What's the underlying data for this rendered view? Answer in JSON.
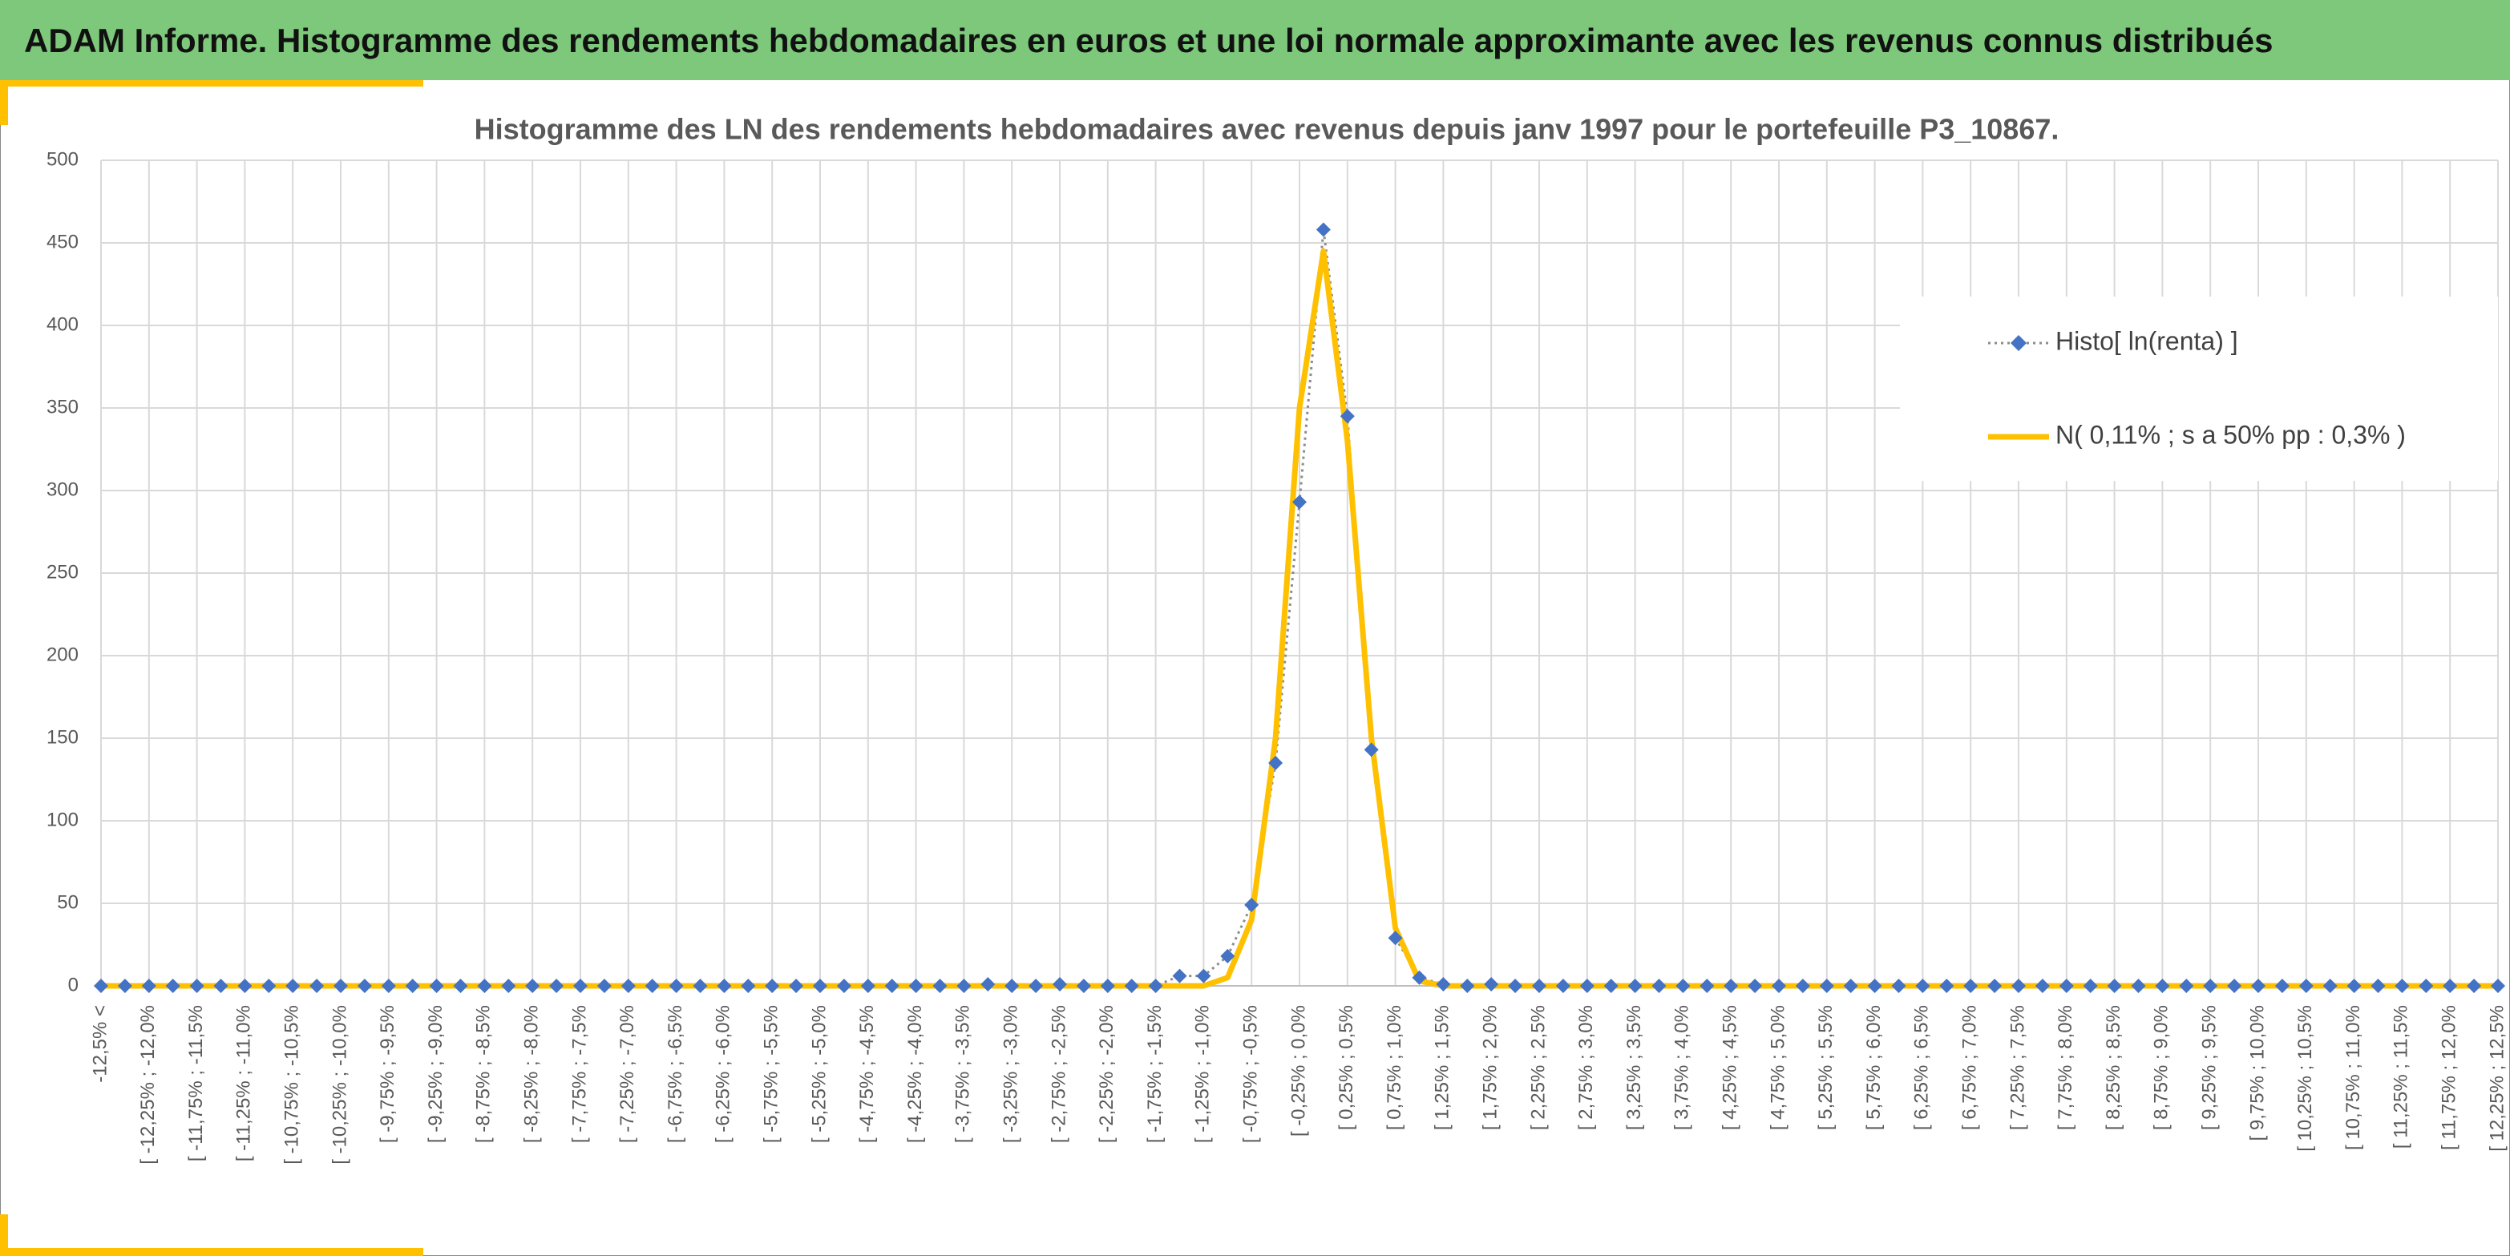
{
  "header": {
    "title": "ADAM Informe. Histogramme des rendements hebdomadaires en euros et une loi normale approximante avec les revenus connus distribués"
  },
  "chart_data": {
    "type": "line",
    "title": "Histogramme des LN des rendements hebdomadaires avec revenus depuis janv 1997 pour le portefeuille P3_10867.",
    "categories": [
      "-12,5% <",
      null,
      "[ -12,25% ; -12,0%",
      null,
      "[ -11,75% ; -11,5%",
      null,
      "[ -11,25% ; -11,0%",
      null,
      "[ -10,75% ; -10,5%",
      null,
      "[ -10,25% ; -10,0%",
      null,
      "[ -9,75% ; -9,5%",
      null,
      "[ -9,25% ; -9,0%",
      null,
      "[ -8,75% ; -8,5%",
      null,
      "[ -8,25% ; -8,0%",
      null,
      "[ -7,75% ; -7,5%",
      null,
      "[ -7,25% ; -7,0%",
      null,
      "[ -6,75% ; -6,5%",
      null,
      "[ -6,25% ; -6,0%",
      null,
      "[ -5,75% ; -5,5%",
      null,
      "[ -5,25% ; -5,0%",
      null,
      "[ -4,75% ; -4,5%",
      null,
      "[ -4,25% ; -4,0%",
      null,
      "[ -3,75% ; -3,5%",
      null,
      "[ -3,25% ; -3,0%",
      null,
      "[ -2,75% ; -2,5%",
      null,
      "[ -2,25% ; -2,0%",
      null,
      "[ -1,75% ; -1,5%",
      null,
      "[ -1,25% ; -1,0%",
      null,
      "[ -0,75% ; -0,5%",
      null,
      "[ -0,25% ; 0,0%",
      null,
      "[ 0,25% ; 0,5%",
      null,
      "[ 0,75% ; 1,0%",
      null,
      "[ 1,25% ; 1,5%",
      null,
      "[ 1,75% ; 2,0%",
      null,
      "[ 2,25% ; 2,5%",
      null,
      "[ 2,75% ; 3,0%",
      null,
      "[ 3,25% ; 3,5%",
      null,
      "[ 3,75% ; 4,0%",
      null,
      "[ 4,25% ; 4,5%",
      null,
      "[ 4,75% ; 5,0%",
      null,
      "[ 5,25% ; 5,5%",
      null,
      "[ 5,75% ; 6,0%",
      null,
      "[ 6,25% ; 6,5%",
      null,
      "[ 6,75% ; 7,0%",
      null,
      "[ 7,25% ; 7,5%",
      null,
      "[ 7,75% ; 8,0%",
      null,
      "[ 8,25% ; 8,5%",
      null,
      "[ 8,75% ; 9,0%",
      null,
      "[ 9,25% ; 9,5%",
      null,
      "[ 9,75% ; 10,0%",
      null,
      "[ 10,25% ; 10,5%",
      null,
      "[ 10,75% ; 11,0%",
      null,
      "[ 11,25% ; 11,5%",
      null,
      "[ 11,75% ; 12,0%",
      null,
      "[ 12,25% ; 12,5%"
    ],
    "series": [
      {
        "name": "Histo[ ln(renta) ]",
        "color": "#4472c4",
        "values": [
          0,
          0,
          0,
          0,
          0,
          0,
          0,
          0,
          0,
          0,
          0,
          0,
          0,
          0,
          0,
          0,
          0,
          0,
          0,
          0,
          0,
          0,
          0,
          0,
          0,
          0,
          0,
          0,
          0,
          0,
          0,
          0,
          0,
          0,
          0,
          0,
          0,
          1,
          0,
          0,
          1,
          0,
          0,
          0,
          0,
          6,
          6,
          18,
          49,
          135,
          293,
          458,
          345,
          143,
          29,
          5,
          1,
          0,
          1,
          0,
          0,
          0,
          0,
          0,
          0,
          0,
          0,
          0,
          0,
          0,
          0,
          0,
          0,
          0,
          0,
          0,
          0,
          0,
          0,
          0,
          0,
          0,
          0,
          0,
          0,
          0,
          0,
          0,
          0,
          0,
          0,
          0,
          0,
          0,
          0,
          0,
          0,
          0,
          0,
          0,
          0
        ]
      },
      {
        "name": "N( 0,11% ; s a 50% pp : 0,3% )",
        "color": "#ffc000",
        "values": [
          0,
          0,
          0,
          0,
          0,
          0,
          0,
          0,
          0,
          0,
          0,
          0,
          0,
          0,
          0,
          0,
          0,
          0,
          0,
          0,
          0,
          0,
          0,
          0,
          0,
          0,
          0,
          0,
          0,
          0,
          0,
          0,
          0,
          0,
          0,
          0,
          0,
          0,
          0,
          0,
          0,
          0,
          0,
          0,
          0,
          0,
          0,
          5,
          40,
          150,
          350,
          445,
          330,
          150,
          35,
          3,
          0,
          0,
          0,
          0,
          0,
          0,
          0,
          0,
          0,
          0,
          0,
          0,
          0,
          0,
          0,
          0,
          0,
          0,
          0,
          0,
          0,
          0,
          0,
          0,
          0,
          0,
          0,
          0,
          0,
          0,
          0,
          0,
          0,
          0,
          0,
          0,
          0,
          0,
          0,
          0,
          0,
          0,
          0,
          0,
          0
        ]
      }
    ],
    "ylim": [
      0,
      500
    ],
    "yticks": [
      0,
      50,
      100,
      150,
      200,
      250,
      300,
      350,
      400,
      450,
      500
    ],
    "grid": true,
    "legend": "right"
  }
}
